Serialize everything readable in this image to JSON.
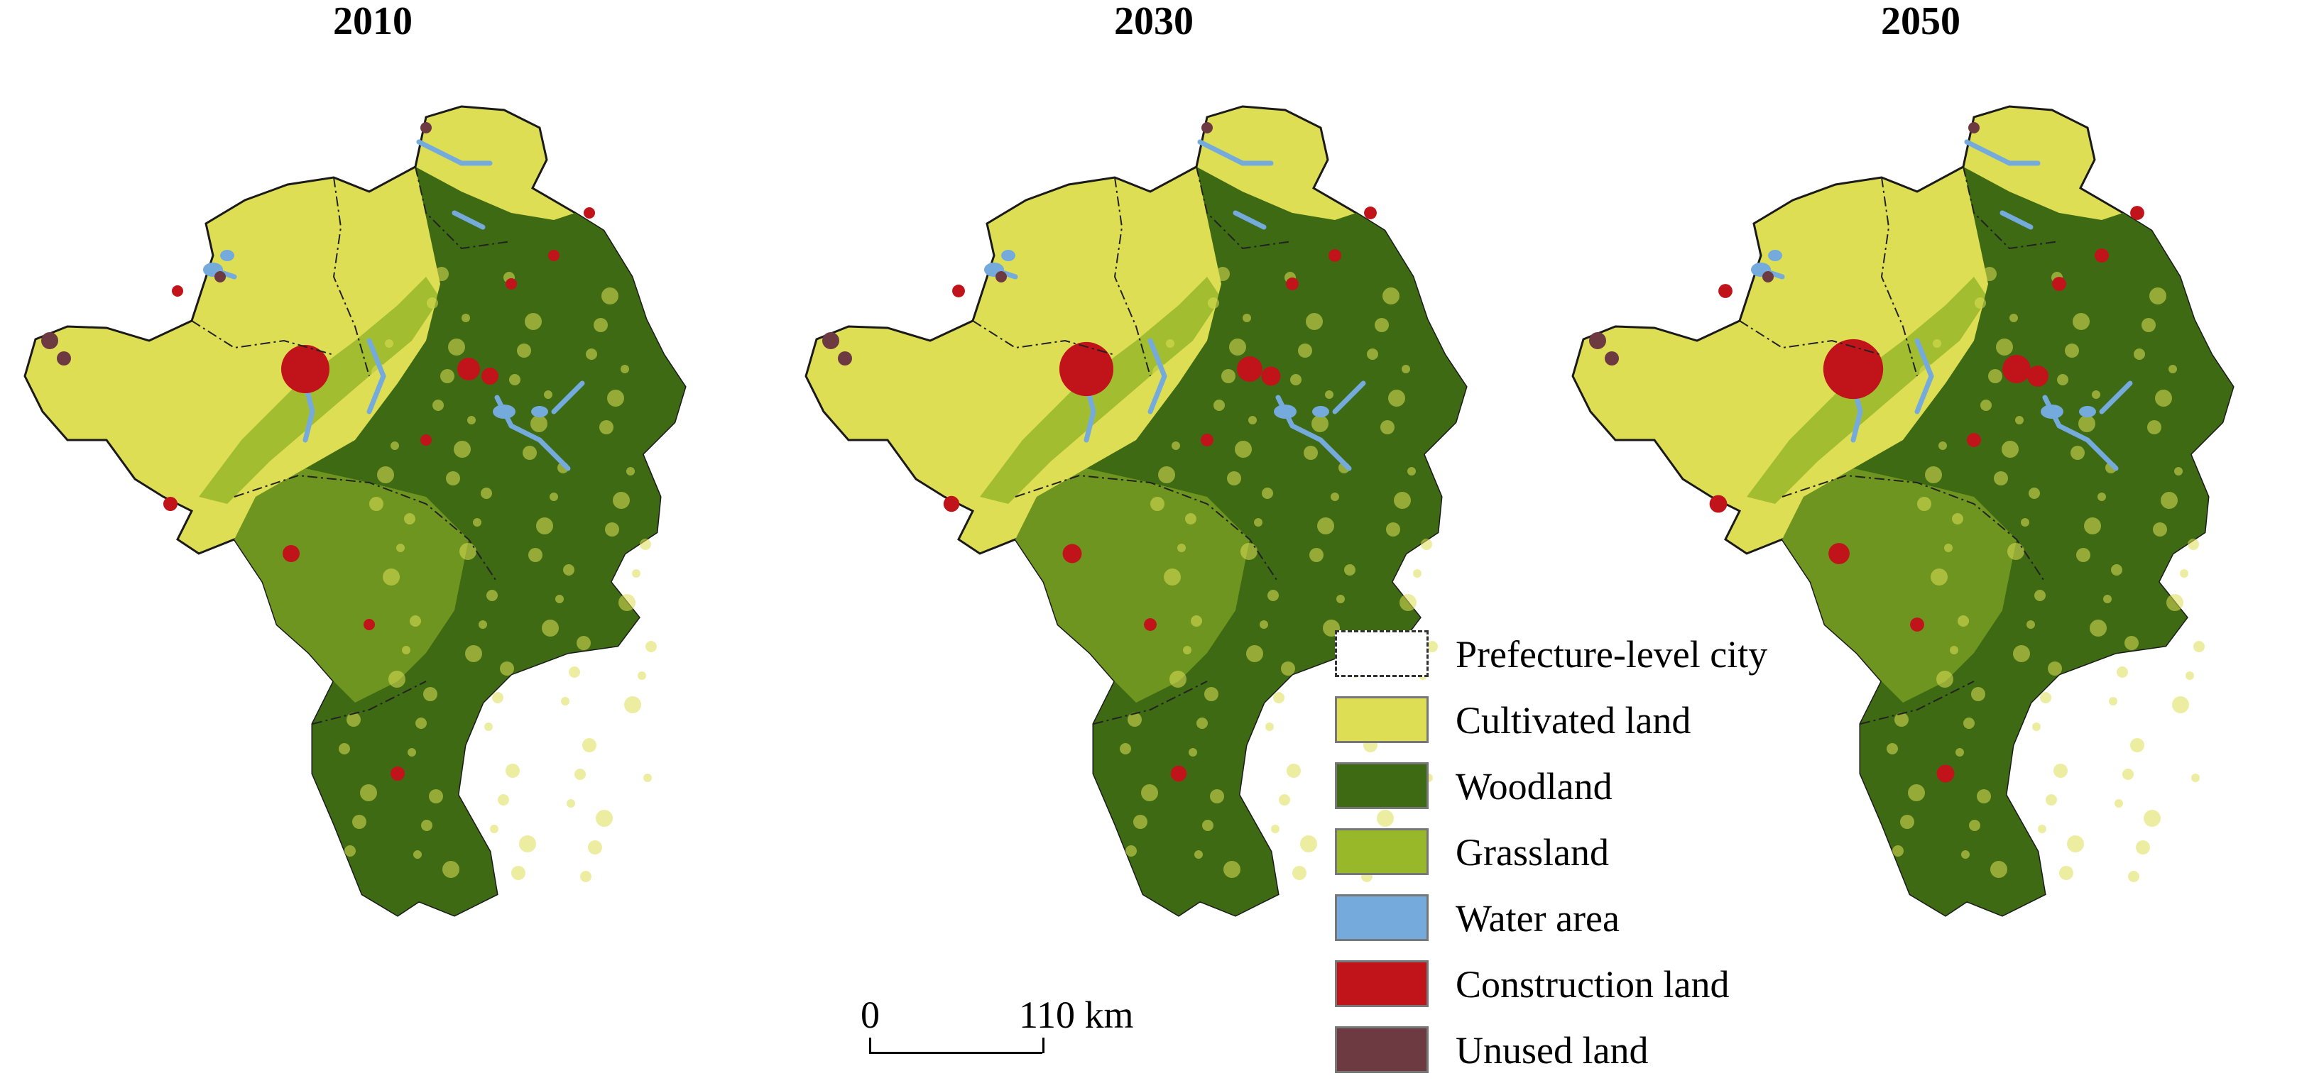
{
  "panels": [
    {
      "title": "2010"
    },
    {
      "title": "2030"
    },
    {
      "title": "2050"
    }
  ],
  "legend": {
    "items": [
      {
        "label": "Prefecture-level city",
        "symbol": "dash-dot-boundary"
      },
      {
        "label": "Cultivated land",
        "color": "#dede55"
      },
      {
        "label": "Woodland",
        "color": "#3d6a12"
      },
      {
        "label": "Grassland",
        "color": "#98b82a"
      },
      {
        "label": "Water area",
        "color": "#74aadc"
      },
      {
        "label": "Construction land",
        "color": "#c0141a"
      },
      {
        "label": "Unused land",
        "color": "#6e3a42"
      }
    ]
  },
  "scalebar": {
    "zero_label": "0",
    "max_label": "110 km"
  }
}
